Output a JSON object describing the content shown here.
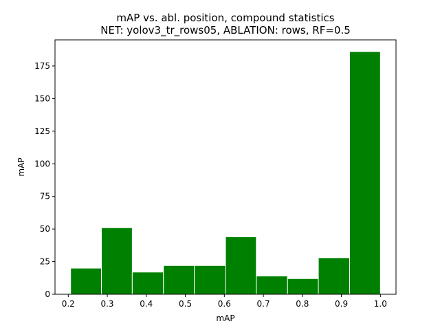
{
  "chart_data": {
    "type": "bar",
    "title": "mAP vs. abl. position, compound statistics",
    "subtitle": "NET: yolov3_tr_rows05, ABLATION: rows, RF=0.5",
    "xlabel": "mAP",
    "ylabel": "mAP",
    "bins": [
      {
        "x0": 0.206,
        "x1": 0.285,
        "count": 20
      },
      {
        "x0": 0.285,
        "x1": 0.364,
        "count": 51
      },
      {
        "x0": 0.364,
        "x1": 0.444,
        "count": 17
      },
      {
        "x0": 0.444,
        "x1": 0.523,
        "count": 22
      },
      {
        "x0": 0.523,
        "x1": 0.603,
        "count": 22
      },
      {
        "x0": 0.603,
        "x1": 0.682,
        "count": 44
      },
      {
        "x0": 0.682,
        "x1": 0.762,
        "count": 14
      },
      {
        "x0": 0.762,
        "x1": 0.841,
        "count": 12
      },
      {
        "x0": 0.841,
        "x1": 0.921,
        "count": 28
      },
      {
        "x0": 0.921,
        "x1": 1.0,
        "count": 186
      }
    ],
    "xlim": [
      0.166,
      1.04
    ],
    "ylim": [
      0,
      195
    ],
    "xticks": [
      0.2,
      0.3,
      0.4,
      0.5,
      0.6,
      0.7,
      0.8,
      0.9,
      1.0
    ],
    "xtick_labels": [
      "0.2",
      "0.3",
      "0.4",
      "0.5",
      "0.6",
      "0.7",
      "0.8",
      "0.9",
      "1.0"
    ],
    "yticks": [
      0,
      25,
      50,
      75,
      100,
      125,
      150,
      175
    ],
    "ytick_labels": [
      "0",
      "25",
      "50",
      "75",
      "100",
      "125",
      "150",
      "175"
    ],
    "bar_color": "#008000",
    "edge_color": "#ffffff",
    "grid": false,
    "legend": "none"
  }
}
